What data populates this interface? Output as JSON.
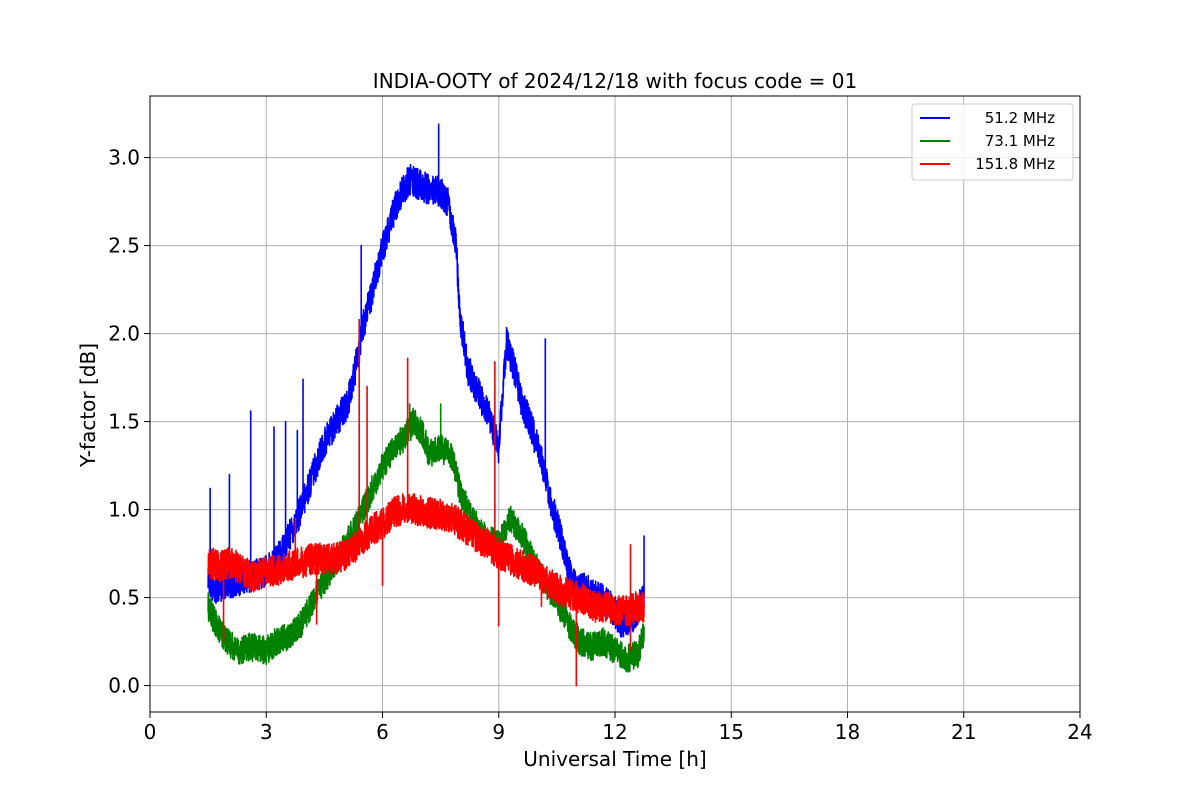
{
  "chart_data": {
    "type": "line",
    "title": "INDIA-OOTY of 2024/12/18 with focus code = 01",
    "xlabel": "Universal Time [h]",
    "ylabel": "Y-factor [dB]",
    "xlim": [
      0,
      24
    ],
    "ylim": [
      -0.15,
      3.35
    ],
    "x_ticks": [
      0,
      3,
      6,
      9,
      12,
      15,
      18,
      21,
      24
    ],
    "x_tick_labels": [
      "0",
      "3",
      "6",
      "9",
      "12",
      "15",
      "18",
      "21",
      "24"
    ],
    "y_ticks": [
      0.0,
      0.5,
      1.0,
      1.5,
      2.0,
      2.5,
      3.0
    ],
    "y_tick_labels": [
      "0.0",
      "0.5",
      "1.0",
      "1.5",
      "2.0",
      "2.5",
      "3.0"
    ],
    "grid": true,
    "legend_position": "top-right",
    "series": [
      {
        "name": "51.2 MHz",
        "color": "#0000ff",
        "x": [
          1.5,
          1.7,
          2.0,
          2.3,
          2.6,
          3.0,
          3.3,
          3.6,
          3.9,
          4.2,
          4.5,
          4.8,
          5.1,
          5.3,
          5.5,
          5.7,
          5.9,
          6.1,
          6.3,
          6.5,
          6.7,
          6.9,
          7.1,
          7.3,
          7.5,
          7.7,
          7.9,
          8.0,
          8.2,
          8.5,
          8.8,
          9.0,
          9.2,
          9.4,
          9.6,
          9.8,
          10.0,
          10.2,
          10.4,
          10.6,
          10.8,
          11.0,
          11.3,
          11.6,
          11.9,
          12.2,
          12.5,
          12.75
        ],
        "y": [
          0.6,
          0.55,
          0.58,
          0.6,
          0.62,
          0.65,
          0.72,
          0.85,
          1.0,
          1.2,
          1.38,
          1.5,
          1.6,
          1.8,
          2.05,
          2.2,
          2.4,
          2.55,
          2.7,
          2.8,
          2.88,
          2.85,
          2.83,
          2.82,
          2.8,
          2.75,
          2.5,
          2.1,
          1.8,
          1.65,
          1.5,
          1.35,
          1.95,
          1.8,
          1.6,
          1.5,
          1.35,
          1.2,
          1.0,
          0.85,
          0.65,
          0.55,
          0.55,
          0.5,
          0.45,
          0.35,
          0.4,
          0.5
        ],
        "spikes": [
          [
            1.55,
            1.12
          ],
          [
            2.05,
            1.2
          ],
          [
            2.6,
            1.56
          ],
          [
            3.2,
            1.47
          ],
          [
            3.5,
            1.5
          ],
          [
            3.8,
            1.45
          ],
          [
            3.95,
            1.74
          ],
          [
            5.45,
            2.5
          ],
          [
            7.45,
            3.19
          ],
          [
            10.2,
            1.97
          ],
          [
            12.75,
            0.85
          ]
        ]
      },
      {
        "name": "73.1 MHz",
        "color": "#008000",
        "x": [
          1.5,
          1.7,
          2.0,
          2.3,
          2.6,
          3.0,
          3.3,
          3.6,
          3.9,
          4.2,
          4.5,
          4.8,
          5.1,
          5.4,
          5.7,
          6.0,
          6.3,
          6.6,
          6.8,
          7.0,
          7.2,
          7.5,
          7.8,
          8.0,
          8.3,
          8.6,
          9.0,
          9.3,
          9.6,
          9.9,
          10.2,
          10.5,
          10.8,
          11.1,
          11.4,
          11.7,
          12.0,
          12.3,
          12.6,
          12.75
        ],
        "y": [
          0.45,
          0.35,
          0.25,
          0.2,
          0.22,
          0.2,
          0.26,
          0.28,
          0.35,
          0.48,
          0.6,
          0.7,
          0.82,
          0.95,
          1.1,
          1.25,
          1.35,
          1.42,
          1.5,
          1.45,
          1.32,
          1.35,
          1.3,
          1.1,
          0.95,
          0.85,
          0.8,
          0.95,
          0.85,
          0.7,
          0.58,
          0.48,
          0.35,
          0.25,
          0.22,
          0.25,
          0.2,
          0.15,
          0.18,
          0.3
        ],
        "spikes": [
          [
            6.7,
            1.6
          ],
          [
            7.5,
            1.6
          ]
        ]
      },
      {
        "name": "151.8 MHz",
        "color": "#ff0000",
        "x": [
          1.5,
          1.8,
          2.1,
          2.4,
          2.7,
          3.0,
          3.3,
          3.6,
          3.9,
          4.2,
          4.5,
          4.8,
          5.1,
          5.4,
          5.7,
          6.0,
          6.3,
          6.6,
          6.9,
          7.2,
          7.5,
          7.8,
          8.1,
          8.4,
          8.7,
          9.0,
          9.3,
          9.6,
          9.9,
          10.2,
          10.5,
          10.8,
          11.1,
          11.4,
          11.7,
          12.0,
          12.3,
          12.6,
          12.75
        ],
        "y": [
          0.7,
          0.68,
          0.7,
          0.65,
          0.62,
          0.65,
          0.66,
          0.68,
          0.7,
          0.72,
          0.72,
          0.72,
          0.75,
          0.8,
          0.88,
          0.92,
          0.98,
          1.02,
          1.0,
          0.98,
          0.97,
          0.95,
          0.9,
          0.85,
          0.8,
          0.75,
          0.72,
          0.68,
          0.65,
          0.6,
          0.55,
          0.52,
          0.5,
          0.45,
          0.45,
          0.42,
          0.42,
          0.45,
          0.45
        ],
        "spikes": [
          [
            3.75,
            0.95
          ],
          [
            5.4,
            2.08
          ],
          [
            5.6,
            1.7
          ],
          [
            6.65,
            1.86
          ],
          [
            8.9,
            1.84
          ],
          [
            12.4,
            0.8
          ]
        ],
        "dips": [
          [
            1.9,
            0.25
          ],
          [
            4.3,
            0.35
          ],
          [
            6.0,
            0.57
          ],
          [
            9.0,
            0.34
          ],
          [
            10.1,
            0.45
          ],
          [
            11.0,
            0.0
          ],
          [
            12.4,
            0.2
          ]
        ]
      }
    ]
  }
}
